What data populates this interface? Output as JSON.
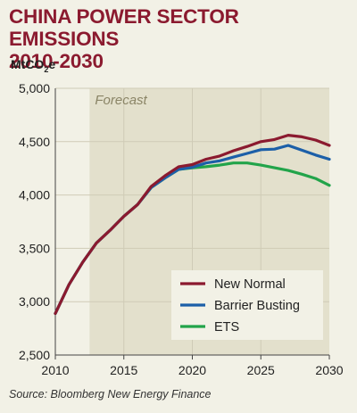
{
  "header": {
    "title_line1": "CHINA POWER SECTOR EMISSIONS",
    "title_line2": "2010-2030",
    "unit_main": "MtCO",
    "unit_sub": "2",
    "unit_suffix": "e"
  },
  "footer": {
    "source": "Source: Bloomberg New Energy Finance"
  },
  "chart_data": {
    "type": "line",
    "title": "CHINA POWER SECTOR EMISSIONS 2010-2030",
    "ylabel": "MtCO2e",
    "xlim": [
      2010,
      2030
    ],
    "ylim": [
      2500,
      5000
    ],
    "x_ticks": [
      2010,
      2015,
      2020,
      2025,
      2030
    ],
    "y_ticks": [
      2500,
      3000,
      3500,
      4000,
      4500,
      5000
    ],
    "x_tick_labels": [
      "2010",
      "2015",
      "2020",
      "2025",
      "2030"
    ],
    "y_tick_labels": [
      "2,500",
      "3,000",
      "3,500",
      "4,000",
      "4,500",
      "5,000"
    ],
    "grid": true,
    "legend_position": "bottom-right",
    "annotation": {
      "text": "Forecast",
      "x_start": 2012.5,
      "x_end": 2030
    },
    "x": [
      2010,
      2011,
      2012,
      2013,
      2014,
      2015,
      2016,
      2017,
      2018,
      2019,
      2020,
      2021,
      2022,
      2023,
      2024,
      2025,
      2026,
      2027,
      2028,
      2029,
      2030
    ],
    "series": [
      {
        "name": "New Normal",
        "color": "#8b1a2f",
        "values": [
          2890,
          3160,
          3370,
          3550,
          3670,
          3800,
          3910,
          4080,
          4180,
          4265,
          4285,
          4335,
          4365,
          4415,
          4455,
          4500,
          4520,
          4560,
          4545,
          4515,
          4465
        ]
      },
      {
        "name": "Barrier Busting",
        "color": "#1c5fa8",
        "values": [
          2890,
          3160,
          3370,
          3550,
          3670,
          3800,
          3910,
          4070,
          4160,
          4240,
          4260,
          4300,
          4320,
          4355,
          4390,
          4425,
          4430,
          4465,
          4420,
          4375,
          4335
        ]
      },
      {
        "name": "ETS",
        "color": "#22a44a",
        "values": [
          2890,
          3160,
          3370,
          3550,
          3670,
          3800,
          3910,
          4070,
          4160,
          4240,
          4255,
          4265,
          4280,
          4300,
          4300,
          4280,
          4255,
          4230,
          4195,
          4155,
          4090
        ]
      }
    ]
  }
}
